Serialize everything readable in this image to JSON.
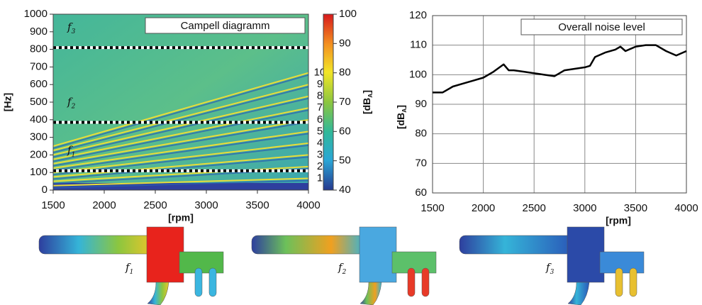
{
  "chart_data": [
    {
      "type": "campbell",
      "title": "Campell diagramm",
      "xlabel": "[rpm]",
      "ylabel": "[Hz]",
      "xlim": [
        1500,
        4000
      ],
      "ylim": [
        0,
        1000
      ],
      "xticks": [
        1500,
        2000,
        2500,
        3000,
        3500,
        4000
      ],
      "yticks": [
        0,
        100,
        200,
        300,
        400,
        500,
        600,
        700,
        800,
        900,
        1000
      ],
      "zlim": [
        40,
        100
      ],
      "zticks": [
        40,
        50,
        60,
        70,
        80,
        90,
        100
      ],
      "zlabel": {
        "text": "[dB",
        "subscript": "A",
        "suffix": "]"
      },
      "orders": [
        1,
        2,
        3,
        4,
        5,
        6,
        7,
        8,
        9,
        10
      ],
      "resonances": [
        {
          "symbol": "f",
          "subscript": "1",
          "value": 110
        },
        {
          "symbol": "f",
          "subscript": "2",
          "value": 385
        },
        {
          "symbol": "f",
          "subscript": "3",
          "value": 810
        }
      ]
    },
    {
      "type": "line",
      "title": "Overall noise level",
      "xlabel": "[rpm]",
      "ylabel": {
        "text": "[dB",
        "subscript": "A",
        "suffix": "]"
      },
      "x": [
        1500,
        1600,
        1700,
        1800,
        1900,
        2000,
        2100,
        2200,
        2250,
        2300,
        2400,
        2500,
        2600,
        2700,
        2800,
        2900,
        3000,
        3050,
        3100,
        3200,
        3300,
        3350,
        3400,
        3500,
        3600,
        3700,
        3800,
        3900,
        4000
      ],
      "series": [
        {
          "color": "#000000",
          "values": [
            94,
            94,
            96,
            97,
            98,
            99,
            101,
            103.5,
            101.5,
            101.5,
            101,
            100.5,
            100,
            99.5,
            101.5,
            102,
            102.5,
            103,
            106,
            107.5,
            108.5,
            109.5,
            108,
            109.5,
            110,
            110,
            108,
            106.5,
            108
          ]
        }
      ],
      "xlim": [
        1500,
        4000
      ],
      "ylim": [
        60,
        120
      ],
      "xticks": [
        1500,
        2000,
        2500,
        3000,
        3500,
        4000
      ],
      "yticks": [
        60,
        70,
        80,
        90,
        100,
        110,
        120
      ],
      "grid": true
    }
  ],
  "mode_shapes": [
    {
      "symbol": "f",
      "subscript": "1"
    },
    {
      "symbol": "f",
      "subscript": "2"
    },
    {
      "symbol": "f",
      "subscript": "3"
    }
  ]
}
